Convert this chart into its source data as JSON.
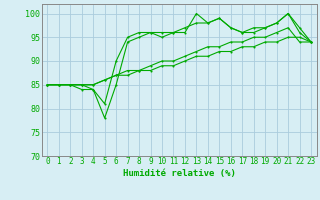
{
  "title": "",
  "xlabel": "Humidité relative (%)",
  "ylabel": "",
  "bg_color": "#d7eef4",
  "grid_color": "#aaccdd",
  "line_color": "#00aa00",
  "ylim": [
    70,
    102
  ],
  "xlim": [
    -0.5,
    23.5
  ],
  "yticks": [
    70,
    75,
    80,
    85,
    90,
    95,
    100
  ],
  "xticks": [
    0,
    1,
    2,
    3,
    4,
    5,
    6,
    7,
    8,
    9,
    10,
    11,
    12,
    13,
    14,
    15,
    16,
    17,
    18,
    19,
    20,
    21,
    22,
    23
  ],
  "series": [
    [
      85,
      85,
      85,
      85,
      84,
      81,
      90,
      95,
      96,
      96,
      95,
      96,
      96,
      100,
      98,
      99,
      97,
      96,
      96,
      97,
      98,
      100,
      97,
      94
    ],
    [
      85,
      85,
      85,
      84,
      84,
      78,
      85,
      94,
      95,
      96,
      96,
      96,
      97,
      98,
      98,
      99,
      97,
      96,
      97,
      97,
      98,
      100,
      96,
      94
    ],
    [
      85,
      85,
      85,
      85,
      85,
      86,
      87,
      87,
      88,
      88,
      89,
      89,
      90,
      91,
      91,
      92,
      92,
      93,
      93,
      94,
      94,
      95,
      95,
      94
    ],
    [
      85,
      85,
      85,
      85,
      85,
      86,
      87,
      88,
      88,
      89,
      90,
      90,
      91,
      92,
      93,
      93,
      94,
      94,
      95,
      95,
      96,
      97,
      94,
      94
    ]
  ]
}
